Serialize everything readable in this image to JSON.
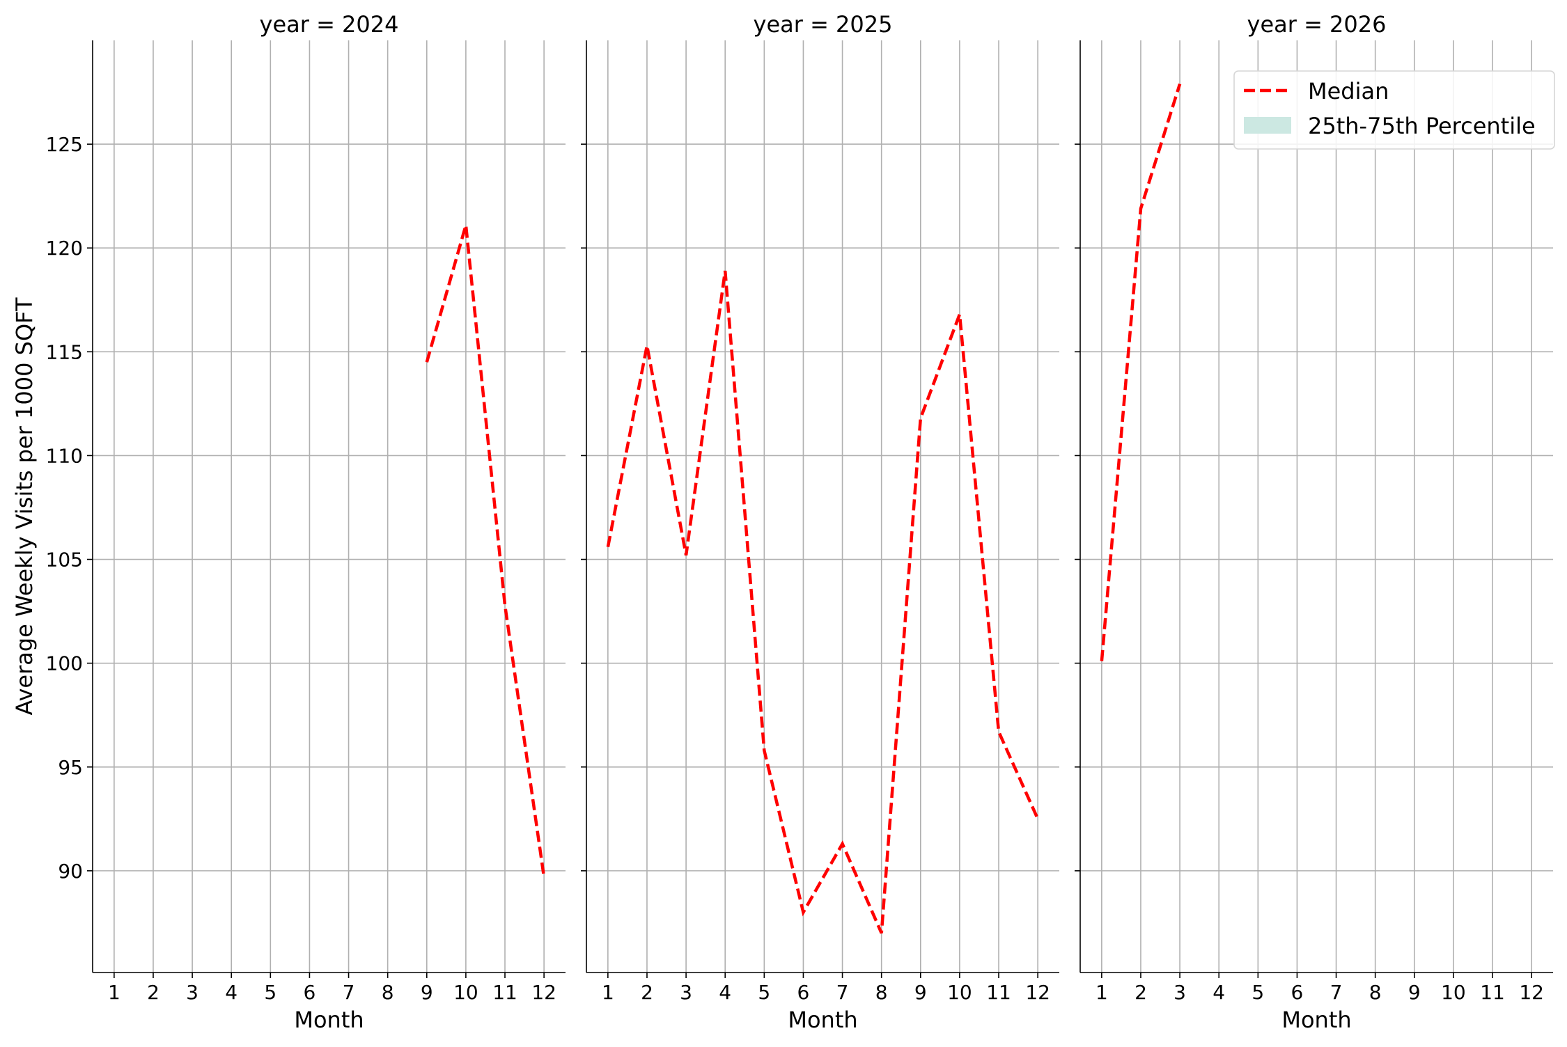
{
  "chart_data": {
    "type": "line",
    "ylabel": "Average Weekly Visits per 1000 SQFT",
    "xlabel": "Month",
    "x_ticks": [
      1,
      2,
      3,
      4,
      5,
      6,
      7,
      8,
      9,
      10,
      11,
      12
    ],
    "y_ticks": [
      90,
      95,
      100,
      105,
      110,
      115,
      120,
      125
    ],
    "xlim": [
      0.45,
      12.55
    ],
    "ylim": [
      85.1,
      130.0
    ],
    "grid": true,
    "legend": {
      "placement": "top-right",
      "entries": [
        {
          "label": "Median",
          "style": "dashed-line",
          "color": "#ff0000"
        },
        {
          "label": "25th-75th Percentile",
          "style": "band",
          "color": "#cce8e2"
        }
      ]
    },
    "panels": [
      {
        "title": "year = 2024",
        "series": [
          {
            "name": "Median",
            "x": [
              9,
              10,
              11,
              12
            ],
            "y": [
              114.5,
              121.1,
              102.8,
              89.7
            ]
          }
        ]
      },
      {
        "title": "year = 2025",
        "series": [
          {
            "name": "Median",
            "x": [
              1,
              2,
              3,
              4,
              5,
              6,
              7,
              8,
              9,
              10,
              11,
              12
            ],
            "y": [
              105.6,
              115.3,
              105.2,
              118.9,
              95.8,
              88.0,
              91.3,
              87.0,
              111.8,
              116.8,
              96.7,
              92.5
            ]
          }
        ]
      },
      {
        "title": "year = 2026",
        "series": [
          {
            "name": "Median",
            "x": [
              1,
              2,
              3
            ],
            "y": [
              100.1,
              121.9,
              127.9
            ]
          }
        ]
      }
    ],
    "colors": {
      "median": "#ff0000",
      "band": "#cce8e2",
      "grid": "#b0b0b0",
      "axis": "#000000"
    }
  }
}
